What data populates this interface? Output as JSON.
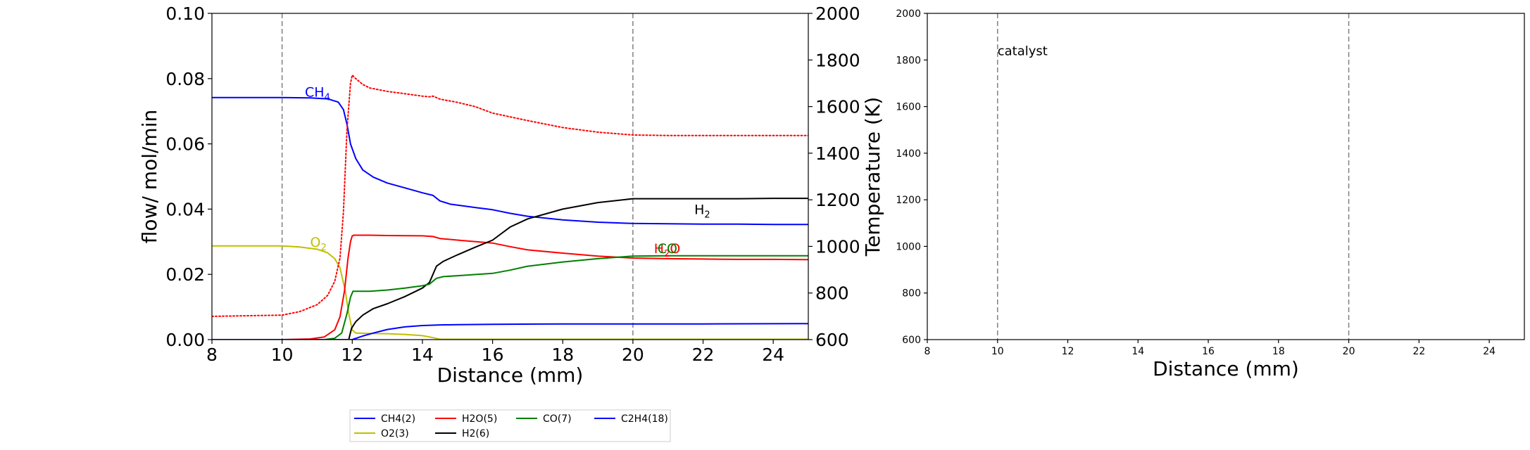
{
  "chart_data": [
    {
      "type": "line",
      "xlabel": "Distance (mm)",
      "ylabel": "flow/ mol/min",
      "ylabel_right": "Temperature (K)",
      "xlim": [
        8,
        25
      ],
      "ylim": [
        0,
        0.1
      ],
      "ylim_right": [
        600,
        2000
      ],
      "xticks": [
        "8",
        "10",
        "12",
        "14",
        "16",
        "18",
        "20",
        "22",
        "24"
      ],
      "yticks": [
        "0.00",
        "0.02",
        "0.04",
        "0.06",
        "0.08",
        "0.10"
      ],
      "yticks_right": [
        "600",
        "800",
        "1000",
        "1200",
        "1400",
        "1600",
        "1800",
        "2000"
      ],
      "vlines": [
        10,
        20
      ],
      "grid": false,
      "series": [
        {
          "name": "CH4(2)",
          "color": "#0000ff",
          "style": "solid",
          "x": [
            8,
            10,
            10.8,
            11.3,
            11.6,
            11.75,
            11.85,
            11.95,
            12.1,
            12.3,
            12.6,
            13,
            13.5,
            14,
            14.3,
            14.5,
            14.8,
            15.5,
            16,
            16.5,
            17,
            18,
            19,
            20,
            21,
            22,
            23,
            24,
            25
          ],
          "y": [
            0.0742,
            0.0742,
            0.0741,
            0.0738,
            0.0728,
            0.0705,
            0.066,
            0.06,
            0.0555,
            0.052,
            0.0498,
            0.048,
            0.0465,
            0.045,
            0.0442,
            0.0425,
            0.0415,
            0.0405,
            0.0398,
            0.0387,
            0.0378,
            0.0367,
            0.036,
            0.0356,
            0.0355,
            0.0354,
            0.0354,
            0.0353,
            0.0353
          ]
        },
        {
          "name": "O2(3)",
          "color": "#bfbf00",
          "style": "solid",
          "x": [
            8,
            10,
            10.5,
            11,
            11.3,
            11.5,
            11.65,
            11.8,
            11.9,
            12.0,
            12.1,
            12.5,
            13,
            13.5,
            14.0,
            14.3,
            14.5,
            25
          ],
          "y": [
            0.0287,
            0.0287,
            0.0284,
            0.0277,
            0.0266,
            0.0248,
            0.022,
            0.015,
            0.008,
            0.003,
            0.002,
            0.0019,
            0.0018,
            0.0016,
            0.0012,
            0.0006,
            0.0001,
            0.0001
          ]
        },
        {
          "name": "H2O(5)",
          "color": "#ff0000",
          "style": "solid",
          "x": [
            8,
            10,
            10.8,
            11.2,
            11.5,
            11.65,
            11.78,
            11.88,
            11.95,
            12.0,
            12.05,
            12.5,
            13,
            14,
            14.3,
            14.5,
            15,
            16,
            16.5,
            17,
            18,
            19,
            20,
            21,
            22,
            23,
            24,
            25
          ],
          "y": [
            0.0,
            0.0,
            0.0002,
            0.0008,
            0.003,
            0.007,
            0.015,
            0.025,
            0.03,
            0.0318,
            0.032,
            0.032,
            0.0319,
            0.0318,
            0.0316,
            0.031,
            0.0305,
            0.0296,
            0.0285,
            0.0275,
            0.0265,
            0.0256,
            0.025,
            0.0248,
            0.0247,
            0.0246,
            0.0246,
            0.0245
          ]
        },
        {
          "name": "H2(6)",
          "color": "#000000",
          "style": "solid",
          "x": [
            8,
            11.9,
            11.98,
            12.1,
            12.3,
            12.6,
            13,
            13.5,
            14,
            14.2,
            14.4,
            14.6,
            15,
            15.5,
            16,
            16.5,
            17,
            18,
            19,
            20,
            21,
            22,
            23,
            24,
            25
          ],
          "y": [
            0.0,
            0.0,
            0.0035,
            0.0055,
            0.0075,
            0.0095,
            0.011,
            0.0132,
            0.0158,
            0.0175,
            0.0225,
            0.024,
            0.026,
            0.0283,
            0.0305,
            0.0345,
            0.037,
            0.04,
            0.042,
            0.0432,
            0.0432,
            0.0432,
            0.0432,
            0.0433,
            0.0433
          ]
        },
        {
          "name": "CO(7)",
          "color": "#008000",
          "style": "solid",
          "x": [
            8,
            11.2,
            11.5,
            11.7,
            11.85,
            11.95,
            12.02,
            12.1,
            12.5,
            13,
            13.5,
            14,
            14.2,
            14.4,
            14.6,
            15,
            16,
            16.5,
            17,
            18,
            19,
            20,
            21,
            25
          ],
          "y": [
            0.0,
            0.0,
            0.0004,
            0.002,
            0.008,
            0.013,
            0.0148,
            0.0148,
            0.0148,
            0.0152,
            0.0158,
            0.0165,
            0.017,
            0.0188,
            0.0193,
            0.0196,
            0.0203,
            0.0213,
            0.0225,
            0.0238,
            0.0248,
            0.0256,
            0.0257,
            0.0257
          ]
        },
        {
          "name": "C2H4(18)",
          "color": "#0000ff",
          "style": "solid",
          "x": [
            8,
            12.0,
            12.3,
            12.6,
            13,
            13.5,
            14,
            14.5,
            15,
            16,
            18,
            20,
            22,
            25
          ],
          "y": [
            0.0,
            0.0,
            0.0011,
            0.002,
            0.0031,
            0.0039,
            0.0043,
            0.0045,
            0.0046,
            0.0047,
            0.0048,
            0.0048,
            0.0048,
            0.0049
          ]
        },
        {
          "name": "Temperature",
          "color": "#ff0000",
          "style": "dotted",
          "axis": "right",
          "x": [
            8,
            10,
            10.5,
            11,
            11.3,
            11.5,
            11.65,
            11.75,
            11.85,
            11.95,
            12.0,
            12.1,
            12.3,
            12.5,
            13,
            13.5,
            14,
            14.2,
            14.3,
            14.5,
            15,
            15.5,
            16,
            17,
            18,
            19,
            20,
            21,
            22,
            25
          ],
          "y": [
            700,
            705,
            720,
            750,
            790,
            850,
            950,
            1150,
            1500,
            1700,
            1735,
            1720,
            1695,
            1680,
            1665,
            1655,
            1645,
            1642,
            1645,
            1632,
            1618,
            1600,
            1572,
            1540,
            1510,
            1490,
            1478,
            1476,
            1476,
            1476
          ]
        }
      ],
      "annotations": [
        {
          "text": "CH",
          "sub": "4",
          "x": 10.65,
          "y": 0.0745,
          "color": "#0000ff"
        },
        {
          "text": "O",
          "sub": "2",
          "x": 10.8,
          "y": 0.0285,
          "color": "#bfbf00"
        },
        {
          "text": "H",
          "sub": "2",
          "x": 21.75,
          "y": 0.0385,
          "color": "#000000"
        },
        {
          "text": "H",
          "sub": "2",
          "tail": "O",
          "x": 20.6,
          "y": 0.0265,
          "color": "#ff0000"
        },
        {
          "text": "CO",
          "x": 20.7,
          "y": 0.0265,
          "color": "#008000"
        }
      ],
      "legend": {
        "placement": "below",
        "entries": [
          {
            "label": "CH4(2)",
            "color": "#0000ff"
          },
          {
            "label": "H2O(5)",
            "color": "#ff0000"
          },
          {
            "label": "CO(7)",
            "color": "#008000"
          },
          {
            "label": "C2H4(18)",
            "color": "#0000ff"
          },
          {
            "label": "O2(3)",
            "color": "#bfbf00"
          },
          {
            "label": "H2(6)",
            "color": "#000000"
          }
        ]
      }
    },
    {
      "type": "line",
      "xlabel": "Distance (mm)",
      "ylabel": "",
      "xlim": [
        8,
        25
      ],
      "ylim": [
        600,
        2000
      ],
      "xticks": [
        "8",
        "10",
        "12",
        "14",
        "16",
        "18",
        "20",
        "22",
        "24"
      ],
      "yticks": [
        "600",
        "800",
        "1000",
        "1200",
        "1400",
        "1600",
        "1800",
        "2000"
      ],
      "vlines": [
        10,
        20
      ],
      "grid": false,
      "series": [],
      "annotations": [
        {
          "text": "catalyst",
          "x": 10.0,
          "y": 1820,
          "color": "#000000"
        }
      ]
    }
  ]
}
